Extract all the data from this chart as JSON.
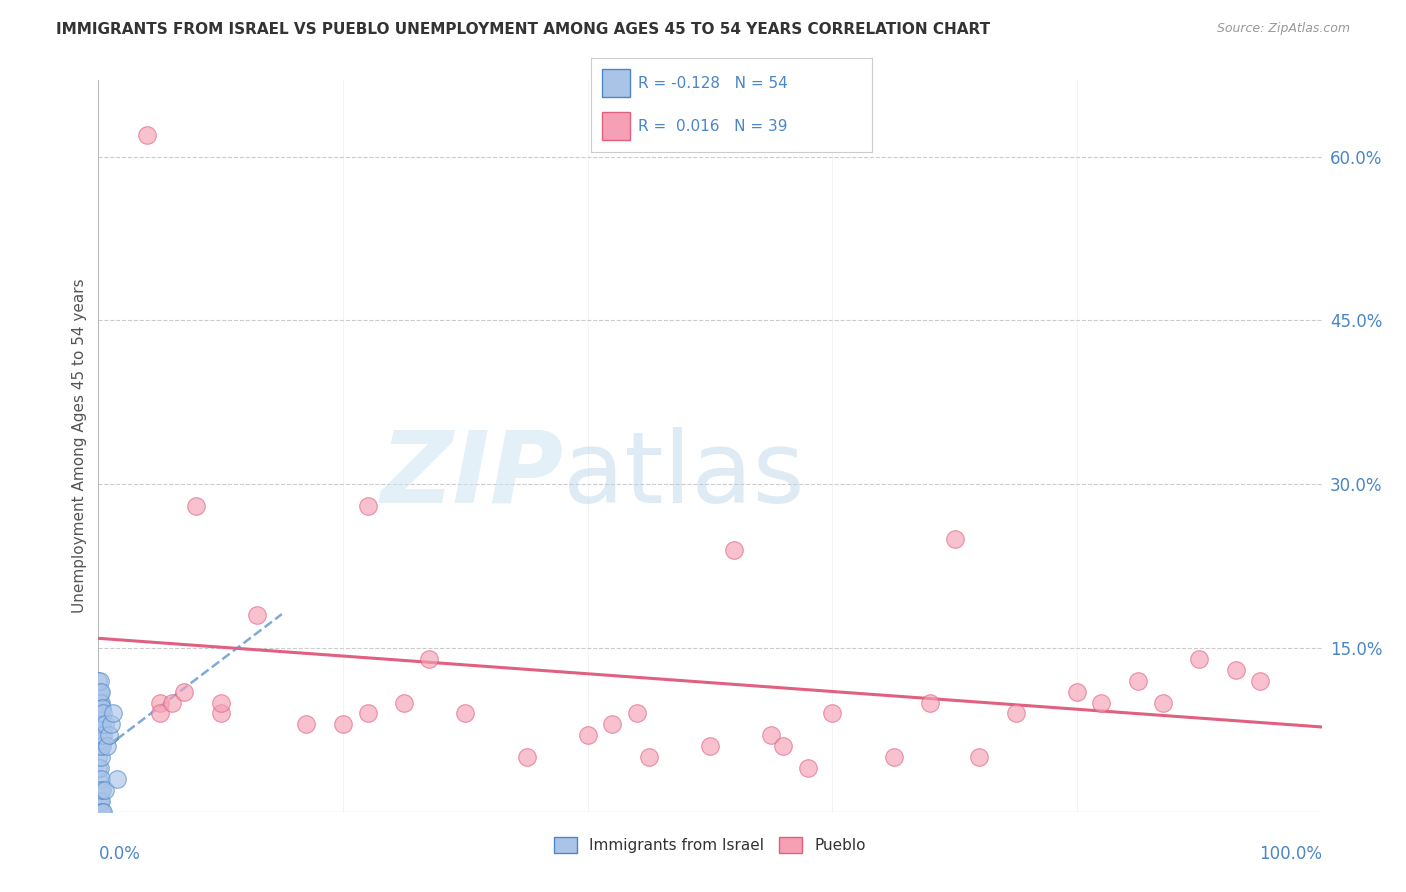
{
  "title": "IMMIGRANTS FROM ISRAEL VS PUEBLO UNEMPLOYMENT AMONG AGES 45 TO 54 YEARS CORRELATION CHART",
  "source": "Source: ZipAtlas.com",
  "ylabel": "Unemployment Among Ages 45 to 54 years",
  "legend1_label": "Immigrants from Israel",
  "legend2_label": "Pueblo",
  "R1": -0.128,
  "N1": 54,
  "R2": 0.016,
  "N2": 39,
  "color_blue": "#aac4e8",
  "color_pink": "#f5a0b5",
  "color_blue_line": "#4a86c8",
  "color_pink_line": "#e06080",
  "background_color": "#ffffff",
  "israel_x": [
    0.0,
    0.0,
    0.0,
    0.0,
    0.0,
    0.0,
    0.0,
    0.0,
    0.0,
    0.0,
    0.0,
    0.0,
    0.0,
    0.0,
    0.0,
    0.0,
    0.0,
    0.0,
    0.0,
    0.0,
    0.001,
    0.001,
    0.001,
    0.001,
    0.001,
    0.001,
    0.001,
    0.001,
    0.001,
    0.001,
    0.002,
    0.002,
    0.002,
    0.002,
    0.002,
    0.002,
    0.002,
    0.002,
    0.002,
    0.003,
    0.003,
    0.003,
    0.003,
    0.003,
    0.004,
    0.004,
    0.004,
    0.005,
    0.005,
    0.007,
    0.009,
    0.01,
    0.012,
    0.015
  ],
  "israel_y": [
    0.0,
    0.0,
    0.0,
    0.0,
    0.0,
    0.0,
    0.01,
    0.02,
    0.03,
    0.04,
    0.05,
    0.06,
    0.07,
    0.08,
    0.09,
    0.095,
    0.1,
    0.105,
    0.11,
    0.12,
    0.0,
    0.01,
    0.02,
    0.04,
    0.06,
    0.08,
    0.09,
    0.1,
    0.11,
    0.12,
    0.0,
    0.01,
    0.03,
    0.05,
    0.07,
    0.08,
    0.09,
    0.1,
    0.11,
    0.0,
    0.02,
    0.06,
    0.08,
    0.095,
    0.0,
    0.07,
    0.09,
    0.02,
    0.08,
    0.06,
    0.07,
    0.08,
    0.09,
    0.03
  ],
  "pueblo_x": [
    0.04,
    0.05,
    0.05,
    0.06,
    0.07,
    0.08,
    0.1,
    0.1,
    0.13,
    0.17,
    0.2,
    0.22,
    0.22,
    0.25,
    0.27,
    0.3,
    0.35,
    0.4,
    0.42,
    0.44,
    0.45,
    0.5,
    0.52,
    0.55,
    0.56,
    0.58,
    0.6,
    0.65,
    0.68,
    0.7,
    0.72,
    0.75,
    0.8,
    0.82,
    0.85,
    0.87,
    0.9,
    0.93,
    0.95
  ],
  "pueblo_y": [
    0.62,
    0.1,
    0.09,
    0.1,
    0.11,
    0.28,
    0.09,
    0.1,
    0.18,
    0.08,
    0.08,
    0.28,
    0.09,
    0.1,
    0.14,
    0.09,
    0.05,
    0.07,
    0.08,
    0.09,
    0.05,
    0.06,
    0.24,
    0.07,
    0.06,
    0.04,
    0.09,
    0.05,
    0.1,
    0.25,
    0.05,
    0.09,
    0.11,
    0.1,
    0.12,
    0.1,
    0.14,
    0.13,
    0.12
  ],
  "ytick_vals": [
    0.15,
    0.3,
    0.45,
    0.6
  ],
  "ytick_labels": [
    "15.0%",
    "30.0%",
    "45.0%",
    "60.0%"
  ],
  "ymax": 0.67,
  "xmax": 1.0
}
